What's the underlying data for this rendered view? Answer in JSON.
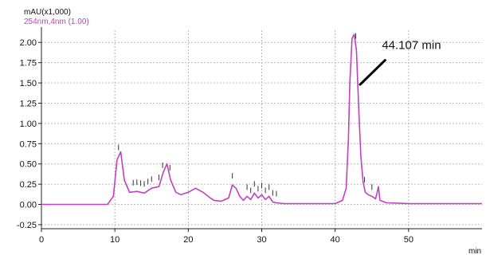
{
  "chart_data": {
    "type": "line",
    "ylabel_unit": "mAU(x1,000)",
    "xlabel_unit": "min",
    "series": [
      {
        "name": "254nm,4nm (1.00)",
        "color": "#c040c0",
        "x": [
          0,
          9,
          9.8,
          10.3,
          10.8,
          11.3,
          12,
          13,
          14,
          15,
          16,
          16.6,
          17.1,
          17.6,
          18.3,
          19,
          20,
          21,
          22,
          23,
          23.5,
          24.5,
          25.5,
          26,
          26.5,
          27,
          27.5,
          28,
          28.5,
          29,
          29.5,
          30,
          30.5,
          31,
          31.5,
          32,
          33,
          35,
          38,
          40,
          41,
          41.5,
          41.8,
          42,
          42.3,
          42.6,
          42.9,
          43.2,
          43.5,
          43.8,
          44.1,
          44.5,
          45,
          45.5,
          45.7,
          45.9,
          46.1,
          47,
          50,
          55,
          60
        ],
        "y": [
          0.0,
          0.0,
          0.1,
          0.55,
          0.65,
          0.3,
          0.15,
          0.16,
          0.14,
          0.2,
          0.22,
          0.4,
          0.5,
          0.3,
          0.15,
          0.12,
          0.15,
          0.2,
          0.15,
          0.08,
          0.05,
          0.04,
          0.08,
          0.24,
          0.2,
          0.1,
          0.05,
          0.1,
          0.06,
          0.14,
          0.08,
          0.12,
          0.06,
          0.1,
          0.03,
          0.02,
          0.01,
          0.01,
          0.01,
          0.01,
          0.05,
          0.2,
          0.8,
          1.5,
          2.05,
          2.1,
          1.9,
          1.2,
          0.6,
          0.28,
          0.15,
          0.12,
          0.1,
          0.07,
          0.14,
          0.22,
          0.05,
          0.02,
          0.01,
          0.01,
          0.01
        ]
      }
    ],
    "xlim": [
      0,
      60
    ],
    "ylim": [
      -0.3,
      2.15
    ],
    "x_ticks": [
      0,
      10,
      20,
      30,
      40,
      50
    ],
    "x_tick_labels": [
      "0",
      "10",
      "20",
      "30",
      "40",
      "50"
    ],
    "y_ticks": [
      -0.25,
      0.0,
      0.25,
      0.5,
      0.75,
      1.0,
      1.25,
      1.5,
      1.75,
      2.0
    ],
    "y_tick_labels": [
      "-0.25",
      "0.00",
      "0.25",
      "0.50",
      "0.75",
      "1.00",
      "1.25",
      "1.50",
      "1.75",
      "2.00"
    ],
    "grid": true,
    "annotation": {
      "text": "44.107 min",
      "arrow_from": [
        46.8,
        1.78
      ],
      "arrow_to": [
        43.4,
        1.48
      ]
    },
    "peak_markers": [
      10.5,
      12.5,
      13,
      13.5,
      14,
      14.5,
      15,
      16,
      16.5,
      17.5,
      26,
      28,
      28.5,
      29,
      29.5,
      30,
      30.5,
      31,
      31.5,
      32,
      42.8,
      44,
      45
    ]
  }
}
